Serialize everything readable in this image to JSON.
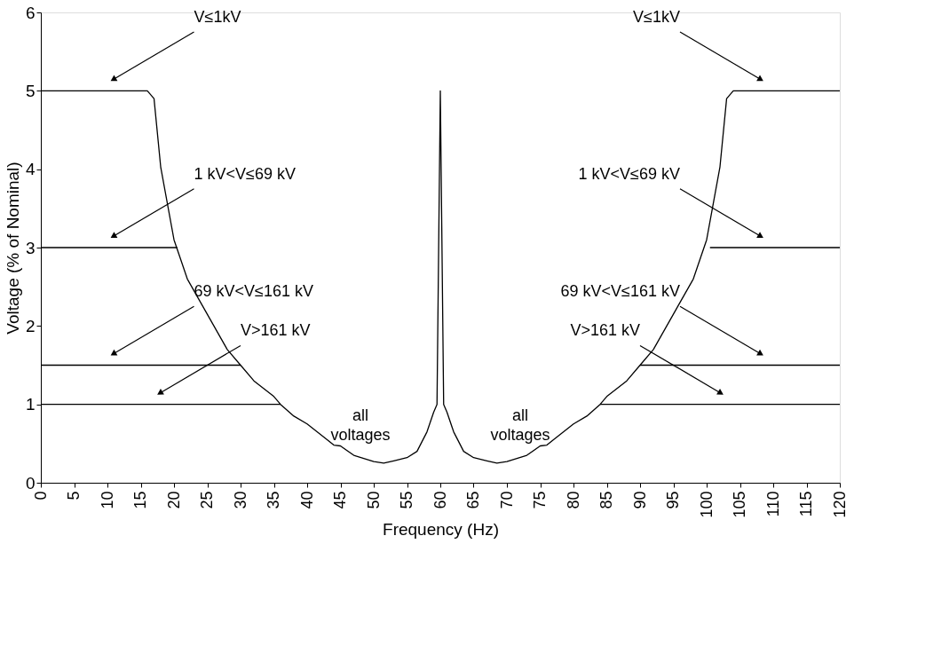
{
  "chart_data": {
    "type": "line",
    "xlabel": "Frequency (Hz)",
    "ylabel": "Voltage (% of Nominal)",
    "xlim": [
      0,
      120
    ],
    "xticks": [
      0,
      5,
      10,
      15,
      20,
      25,
      30,
      35,
      40,
      45,
      50,
      55,
      60,
      65,
      70,
      75,
      80,
      85,
      90,
      95,
      100,
      105,
      110,
      115,
      120
    ],
    "ylim": [
      0,
      6
    ],
    "yticks": [
      0,
      1,
      2,
      3,
      4,
      5,
      6
    ],
    "grid": false,
    "legend": false,
    "marker": "none",
    "line_style": "solid",
    "series": [
      {
        "color": "#000000",
        "x": [
          0,
          16,
          17,
          18,
          20,
          22,
          25,
          28,
          30,
          32,
          35,
          36,
          38,
          40,
          43,
          44,
          45,
          47,
          50,
          51.5,
          53,
          55,
          56.5,
          58,
          59,
          59.5,
          60,
          60.5,
          61,
          62,
          63.5,
          65,
          67,
          68.5,
          70,
          73,
          75,
          76,
          77,
          80,
          82,
          84,
          85,
          88,
          90,
          92,
          95,
          98,
          100,
          102,
          103,
          104,
          120
        ],
        "values": [
          5,
          5,
          4.9,
          4.03,
          3.1,
          2.6,
          2.15,
          1.7,
          1.5,
          1.3,
          1.1,
          1,
          0.85,
          0.75,
          0.55,
          0.48,
          0.47,
          0.35,
          0.27,
          0.25,
          0.28,
          0.32,
          0.4,
          0.65,
          0.9,
          1,
          5,
          1,
          0.9,
          0.65,
          0.4,
          0.32,
          0.28,
          0.25,
          0.27,
          0.35,
          0.47,
          0.48,
          0.55,
          0.75,
          0.85,
          1,
          1.1,
          1.3,
          1.5,
          1.7,
          2.15,
          2.6,
          3.1,
          4.03,
          4.9,
          5,
          5
        ]
      },
      {
        "color": "#000000",
        "x": [
          0,
          20.5,
          null,
          100.5,
          120
        ],
        "values": [
          3,
          3,
          null,
          3,
          3
        ]
      },
      {
        "color": "#000000",
        "x": [
          0,
          30,
          null,
          90,
          120
        ],
        "values": [
          1.5,
          1.5,
          null,
          1.5,
          1.5
        ]
      },
      {
        "color": "#000000",
        "x": [
          0,
          36,
          null,
          84,
          120
        ],
        "values": [
          1,
          1,
          null,
          1,
          1
        ]
      }
    ],
    "annotations": [
      {
        "text": "V≤1kV",
        "x": 11,
        "y": 5.15
      },
      {
        "text": "V≤1kV",
        "x": 108,
        "y": 5.15
      },
      {
        "text": "1 kV<V≤69 kV",
        "x": 11,
        "y": 3.15
      },
      {
        "text": "1 kV<V≤69 kV",
        "x": 108,
        "y": 3.15
      },
      {
        "text": "69 kV<V≤161 kV",
        "x": 11,
        "y": 1.65
      },
      {
        "text": "69 kV<V≤161 kV",
        "x": 108,
        "y": 1.65
      },
      {
        "text": "V>161 kV",
        "x": 18,
        "y": 1.15
      },
      {
        "text": "V>161 kV",
        "x": 102,
        "y": 1.15
      },
      "all\nvoltages",
      "all\nvoltages"
    ]
  }
}
